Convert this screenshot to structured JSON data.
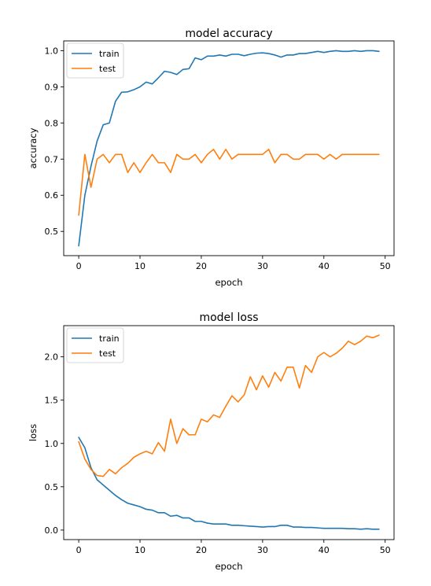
{
  "chart_data": [
    {
      "type": "line",
      "title": "model accuracy",
      "xlabel": "epoch",
      "ylabel": "accuracy",
      "xlim": [
        -2.45,
        51.45
      ],
      "ylim": [
        0.433,
        1.027
      ],
      "xticks": [
        0,
        10,
        20,
        30,
        40,
        50
      ],
      "yticks": [
        0.5,
        0.6,
        0.7,
        0.8,
        0.9,
        1.0
      ],
      "ytick_labels": [
        "0.5",
        "0.6",
        "0.7",
        "0.8",
        "0.9",
        "1.0"
      ],
      "legend": "upper-left",
      "grid": false,
      "series": [
        {
          "name": "train",
          "color": "#1f77b4",
          "x": [
            0,
            1,
            2,
            3,
            4,
            5,
            6,
            7,
            8,
            9,
            10,
            11,
            12,
            13,
            14,
            15,
            16,
            17,
            18,
            19,
            20,
            21,
            22,
            23,
            24,
            25,
            26,
            27,
            28,
            29,
            30,
            31,
            32,
            33,
            34,
            35,
            36,
            37,
            38,
            39,
            40,
            41,
            42,
            43,
            44,
            45,
            46,
            47,
            48,
            49
          ],
          "values": [
            0.46,
            0.6,
            0.68,
            0.75,
            0.795,
            0.8,
            0.86,
            0.885,
            0.886,
            0.892,
            0.9,
            0.913,
            0.908,
            0.925,
            0.943,
            0.94,
            0.934,
            0.948,
            0.95,
            0.98,
            0.975,
            0.985,
            0.985,
            0.988,
            0.985,
            0.99,
            0.99,
            0.986,
            0.99,
            0.993,
            0.994,
            0.992,
            0.988,
            0.982,
            0.988,
            0.988,
            0.992,
            0.992,
            0.995,
            0.998,
            0.995,
            0.998,
            1.0,
            0.998,
            0.998,
            1.0,
            0.998,
            1.0,
            1.0,
            0.998
          ]
        },
        {
          "name": "test",
          "color": "#ff7f0e",
          "x": [
            0,
            1,
            2,
            3,
            4,
            5,
            6,
            7,
            8,
            9,
            10,
            11,
            12,
            13,
            14,
            15,
            16,
            17,
            18,
            19,
            20,
            21,
            22,
            23,
            24,
            25,
            26,
            27,
            28,
            29,
            30,
            31,
            32,
            33,
            34,
            35,
            36,
            37,
            38,
            39,
            40,
            41,
            42,
            43,
            44,
            45,
            46,
            47,
            48,
            49
          ],
          "values": [
            0.545,
            0.713,
            0.622,
            0.7,
            0.713,
            0.69,
            0.713,
            0.713,
            0.663,
            0.69,
            0.663,
            0.69,
            0.713,
            0.69,
            0.69,
            0.663,
            0.713,
            0.7,
            0.7,
            0.713,
            0.69,
            0.713,
            0.727,
            0.7,
            0.727,
            0.7,
            0.713,
            0.713,
            0.713,
            0.713,
            0.713,
            0.727,
            0.69,
            0.713,
            0.713,
            0.7,
            0.7,
            0.713,
            0.713,
            0.713,
            0.7,
            0.713,
            0.7,
            0.713,
            0.713,
            0.713,
            0.713,
            0.713,
            0.713,
            0.713
          ]
        }
      ]
    },
    {
      "type": "line",
      "title": "model loss",
      "xlabel": "epoch",
      "ylabel": "loss",
      "xlim": [
        -2.45,
        51.45
      ],
      "ylim": [
        -0.11,
        2.36
      ],
      "xticks": [
        0,
        10,
        20,
        30,
        40,
        50
      ],
      "yticks": [
        0.0,
        0.5,
        1.0,
        1.5,
        2.0
      ],
      "ytick_labels": [
        "0.0",
        "0.5",
        "1.0",
        "1.5",
        "2.0"
      ],
      "legend": "upper-left",
      "grid": false,
      "series": [
        {
          "name": "train",
          "color": "#1f77b4",
          "x": [
            0,
            1,
            2,
            3,
            4,
            5,
            6,
            7,
            8,
            9,
            10,
            11,
            12,
            13,
            14,
            15,
            16,
            17,
            18,
            19,
            20,
            21,
            22,
            23,
            24,
            25,
            26,
            27,
            28,
            29,
            30,
            31,
            32,
            33,
            34,
            35,
            36,
            37,
            38,
            39,
            40,
            41,
            42,
            43,
            44,
            45,
            46,
            47,
            48,
            49
          ],
          "values": [
            1.07,
            0.95,
            0.72,
            0.58,
            0.52,
            0.46,
            0.4,
            0.35,
            0.31,
            0.29,
            0.27,
            0.24,
            0.23,
            0.2,
            0.2,
            0.16,
            0.17,
            0.14,
            0.14,
            0.1,
            0.1,
            0.08,
            0.07,
            0.07,
            0.07,
            0.055,
            0.055,
            0.05,
            0.045,
            0.04,
            0.035,
            0.04,
            0.04,
            0.055,
            0.055,
            0.035,
            0.035,
            0.03,
            0.03,
            0.025,
            0.02,
            0.02,
            0.02,
            0.02,
            0.015,
            0.015,
            0.01,
            0.015,
            0.01,
            0.01
          ]
        },
        {
          "name": "test",
          "color": "#ff7f0e",
          "x": [
            0,
            1,
            2,
            3,
            4,
            5,
            6,
            7,
            8,
            9,
            10,
            11,
            12,
            13,
            14,
            15,
            16,
            17,
            18,
            19,
            20,
            21,
            22,
            23,
            24,
            25,
            26,
            27,
            28,
            29,
            30,
            31,
            32,
            33,
            34,
            35,
            36,
            37,
            38,
            39,
            40,
            41,
            42,
            43,
            44,
            45,
            46,
            47,
            48,
            49
          ],
          "values": [
            1.02,
            0.82,
            0.7,
            0.63,
            0.62,
            0.7,
            0.65,
            0.72,
            0.77,
            0.84,
            0.88,
            0.91,
            0.88,
            1.01,
            0.91,
            1.28,
            1.0,
            1.17,
            1.1,
            1.1,
            1.28,
            1.25,
            1.33,
            1.3,
            1.43,
            1.55,
            1.48,
            1.56,
            1.77,
            1.62,
            1.78,
            1.65,
            1.82,
            1.72,
            1.88,
            1.88,
            1.64,
            1.9,
            1.82,
            2.0,
            2.05,
            2.0,
            2.04,
            2.1,
            2.18,
            2.14,
            2.18,
            2.24,
            2.22,
            2.25
          ]
        }
      ]
    }
  ]
}
